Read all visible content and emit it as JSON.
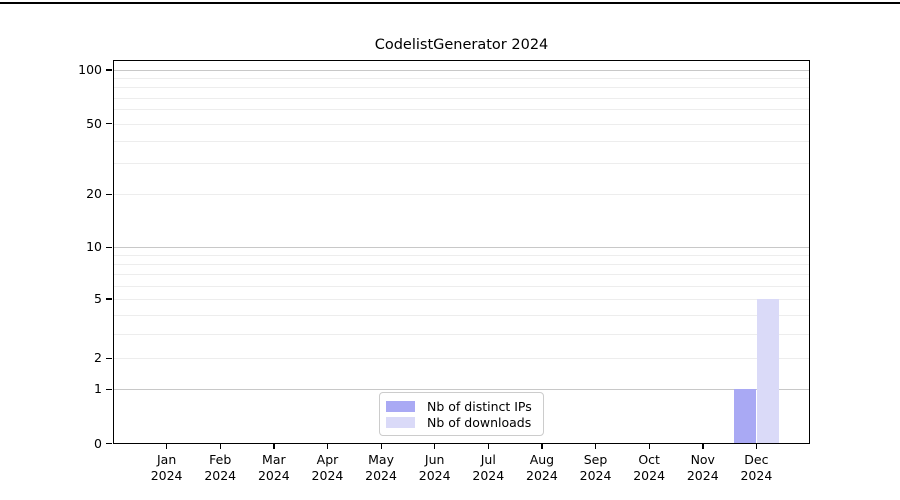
{
  "page": {
    "top_rule": true
  },
  "chart_data": {
    "type": "bar",
    "title": "CodelistGenerator 2024",
    "categories": [
      "Jan",
      "Feb",
      "Mar",
      "Apr",
      "May",
      "Jun",
      "Jul",
      "Aug",
      "Sep",
      "Oct",
      "Nov",
      "Dec"
    ],
    "category_year": "2024",
    "series": [
      {
        "name": "Nb of distinct IPs",
        "color": "#a9a9f4",
        "values": [
          0,
          0,
          0,
          0,
          0,
          0,
          0,
          0,
          0,
          0,
          0,
          1
        ]
      },
      {
        "name": "Nb of downloads",
        "color": "#dadaf8",
        "values": [
          0,
          0,
          0,
          0,
          0,
          0,
          0,
          0,
          0,
          0,
          0,
          5
        ]
      }
    ],
    "xlabel": "",
    "ylabel": "",
    "yaxis": {
      "scale": "log-like",
      "ylim": [
        0,
        100
      ],
      "ticks": [
        0,
        1,
        2,
        5,
        10,
        20,
        50,
        100
      ],
      "major_gridlines": [
        1,
        10,
        100
      ],
      "minor_gridlines": [
        2,
        3,
        4,
        5,
        6,
        7,
        8,
        9,
        20,
        30,
        40,
        50,
        60,
        70,
        80,
        90
      ]
    },
    "grid": "horizontal only",
    "legend": {
      "position": "bottom-center-inside",
      "entries": [
        "Nb of distinct IPs",
        "Nb of downloads"
      ]
    }
  },
  "colors": {
    "frame": "#000000",
    "major_grid": "#c8c8c8",
    "minor_grid": "#ededed",
    "legend_border": "#cccccc",
    "background": "#ffffff",
    "text": "#000000"
  }
}
